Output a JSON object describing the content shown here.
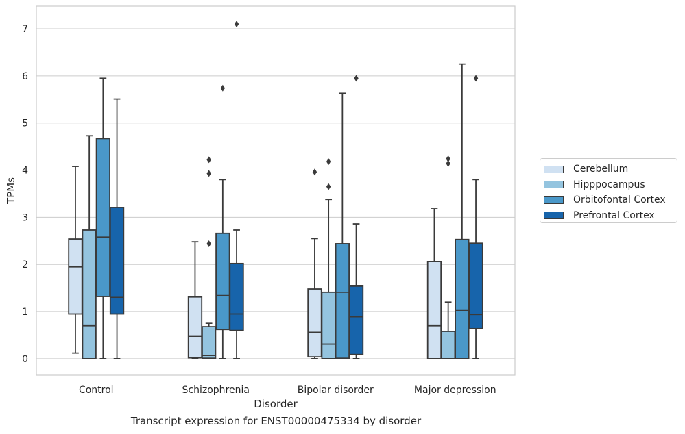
{
  "chart_data": {
    "type": "box",
    "categories": [
      "Control",
      "Schizophrenia",
      "Bipolar disorder",
      "Major depression"
    ],
    "xlabel": "Disorder",
    "ylabel": "TPMs",
    "ylim": [
      -0.35,
      7.48
    ],
    "yticks": [
      0,
      1,
      2,
      3,
      4,
      5,
      6,
      7
    ],
    "grid": "horizontal",
    "legend_position": "right",
    "series": [
      {
        "name": "Cerebellum",
        "color": "#d0e1f2",
        "boxes": [
          {
            "whislo": 0.12,
            "q1": 0.95,
            "med": 1.95,
            "q3": 2.54,
            "whishi": 4.08,
            "fliers": []
          },
          {
            "whislo": 0.0,
            "q1": 0.02,
            "med": 0.47,
            "q3": 1.31,
            "whishi": 2.48,
            "fliers": []
          },
          {
            "whislo": 0.0,
            "q1": 0.04,
            "med": 0.56,
            "q3": 1.48,
            "whishi": 2.55,
            "fliers": [
              3.96
            ]
          },
          {
            "whislo": 0.0,
            "q1": 0.0,
            "med": 0.7,
            "q3": 2.06,
            "whishi": 3.18,
            "fliers": []
          }
        ]
      },
      {
        "name": "Hipppocampus",
        "color": "#94c4df",
        "boxes": [
          {
            "whislo": 0.0,
            "q1": 0.0,
            "med": 0.7,
            "q3": 2.73,
            "whishi": 4.73,
            "fliers": []
          },
          {
            "whislo": 0.0,
            "q1": 0.01,
            "med": 0.07,
            "q3": 0.68,
            "whishi": 0.75,
            "fliers": [
              2.44,
              3.93,
              4.22
            ]
          },
          {
            "whislo": 0.0,
            "q1": 0.0,
            "med": 0.31,
            "q3": 1.41,
            "whishi": 3.38,
            "fliers": [
              3.65,
              4.18
            ]
          },
          {
            "whislo": 0.0,
            "q1": 0.0,
            "med": 0.0,
            "q3": 0.58,
            "whishi": 1.2,
            "fliers": [
              4.14,
              4.24
            ]
          }
        ]
      },
      {
        "name": "Orbitofontal Cortex",
        "color": "#4a98c9",
        "boxes": [
          {
            "whislo": 0.0,
            "q1": 1.32,
            "med": 2.58,
            "q3": 4.67,
            "whishi": 5.95,
            "fliers": []
          },
          {
            "whislo": 0.0,
            "q1": 0.62,
            "med": 1.34,
            "q3": 2.66,
            "whishi": 3.8,
            "fliers": [
              5.74
            ]
          },
          {
            "whislo": 0.0,
            "q1": 0.01,
            "med": 1.41,
            "q3": 2.44,
            "whishi": 5.63,
            "fliers": []
          },
          {
            "whislo": 0.0,
            "q1": 0.0,
            "med": 1.02,
            "q3": 2.53,
            "whishi": 6.25,
            "fliers": []
          }
        ]
      },
      {
        "name": "Prefrontal Cortex",
        "color": "#1764ab",
        "boxes": [
          {
            "whislo": 0.0,
            "q1": 0.95,
            "med": 1.3,
            "q3": 3.21,
            "whishi": 5.51,
            "fliers": []
          },
          {
            "whislo": 0.0,
            "q1": 0.6,
            "med": 0.95,
            "q3": 2.02,
            "whishi": 2.73,
            "fliers": [
              7.1
            ]
          },
          {
            "whislo": 0.0,
            "q1": 0.09,
            "med": 0.89,
            "q3": 1.54,
            "whishi": 2.86,
            "fliers": [
              5.95
            ]
          },
          {
            "whislo": 0.0,
            "q1": 0.64,
            "med": 0.94,
            "q3": 2.45,
            "whishi": 3.8,
            "fliers": [
              5.95
            ]
          }
        ]
      }
    ]
  },
  "caption": "Transcript expression for ENST00000475334 by disorder"
}
